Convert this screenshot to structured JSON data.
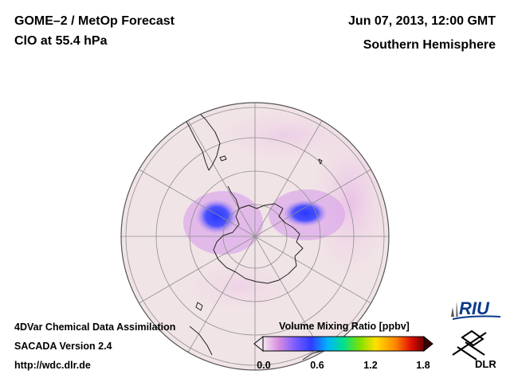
{
  "header": {
    "title": "GOME–2 / MetOp Forecast",
    "subtitle": "ClO at 55.4 hPa",
    "date": "Jun 07, 2013, 12:00 GMT",
    "hemisphere": "Southern Hemisphere"
  },
  "footer": {
    "line1": "4DVar Chemical Data Assimilation",
    "line2": "SACADA Version 2.4",
    "line3": "http://wdc.dlr.de"
  },
  "colorbar": {
    "title": "Volume Mixing Ratio [ppbv]",
    "ticks": [
      "0.0",
      "0.6",
      "1.2",
      "1.8"
    ],
    "colors": [
      "#f4e6f0",
      "#d58be0",
      "#7a5cff",
      "#2f3cff",
      "#00b4ff",
      "#00e08c",
      "#7ee000",
      "#ffe000",
      "#ff8a00",
      "#e01000",
      "#6e0000"
    ]
  },
  "logos": {
    "riu": "RIU",
    "dlr": "DLR"
  },
  "colors": {
    "ocean": "#f1e4e6",
    "coast": "#222222",
    "grid": "#8f8f8f"
  }
}
